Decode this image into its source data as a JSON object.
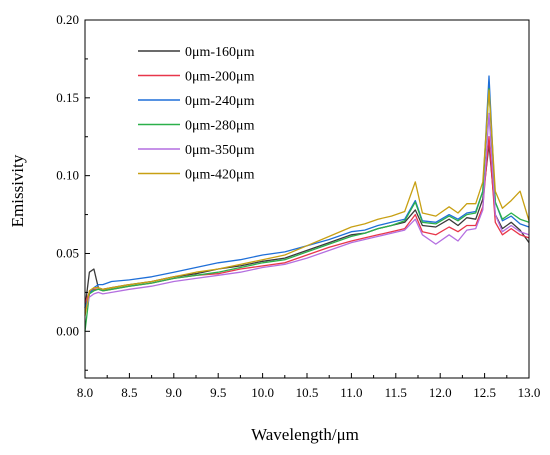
{
  "chart_data": {
    "type": "line",
    "xlabel": "Wavelength/μm",
    "ylabel": "Emissivity",
    "xlim": [
      8.0,
      13.0
    ],
    "ylim": [
      -0.03,
      0.2
    ],
    "xticks": [
      8.0,
      8.5,
      9.0,
      9.5,
      10.0,
      10.5,
      11.0,
      11.5,
      12.0,
      12.5,
      13.0
    ],
    "xtick_labels": [
      "8.0",
      "8.5",
      "9.0",
      "9.5",
      "10.0",
      "10.5",
      "11.0",
      "11.5",
      "12.0",
      "12.5",
      "13.0"
    ],
    "yticks": [
      0.0,
      0.05,
      0.1,
      0.15,
      0.2
    ],
    "ytick_labels": [
      "0.00",
      "0.05",
      "0.10",
      "0.15",
      "0.20"
    ],
    "grid": false,
    "legend": "top-left",
    "x": [
      8.0,
      8.05,
      8.1,
      8.15,
      8.2,
      8.3,
      8.5,
      8.75,
      9.0,
      9.25,
      9.5,
      9.75,
      10.0,
      10.25,
      10.5,
      10.75,
      11.0,
      11.15,
      11.3,
      11.45,
      11.6,
      11.72,
      11.8,
      11.95,
      12.1,
      12.2,
      12.3,
      12.4,
      12.48,
      12.55,
      12.62,
      12.7,
      12.8,
      12.9,
      13.0
    ],
    "series": [
      {
        "name": "0μm-160μm",
        "color": "#3a3a3a",
        "values": [
          0.015,
          0.038,
          0.04,
          0.028,
          0.027,
          0.028,
          0.03,
          0.032,
          0.035,
          0.037,
          0.04,
          0.042,
          0.045,
          0.047,
          0.052,
          0.057,
          0.062,
          0.063,
          0.066,
          0.068,
          0.07,
          0.078,
          0.068,
          0.067,
          0.072,
          0.068,
          0.073,
          0.072,
          0.085,
          0.12,
          0.075,
          0.066,
          0.07,
          0.065,
          0.057
        ]
      },
      {
        "name": "0μm-200μm",
        "color": "#e8364a",
        "values": [
          0.018,
          0.025,
          0.027,
          0.027,
          0.026,
          0.027,
          0.029,
          0.031,
          0.034,
          0.036,
          0.037,
          0.04,
          0.042,
          0.044,
          0.049,
          0.054,
          0.058,
          0.06,
          0.062,
          0.064,
          0.066,
          0.075,
          0.064,
          0.062,
          0.067,
          0.064,
          0.068,
          0.068,
          0.08,
          0.125,
          0.07,
          0.062,
          0.066,
          0.062,
          0.06
        ]
      },
      {
        "name": "0μm-240μm",
        "color": "#1f6fd8",
        "values": [
          0.015,
          0.024,
          0.028,
          0.03,
          0.03,
          0.032,
          0.033,
          0.035,
          0.038,
          0.041,
          0.044,
          0.046,
          0.049,
          0.051,
          0.055,
          0.059,
          0.064,
          0.065,
          0.068,
          0.07,
          0.072,
          0.084,
          0.071,
          0.07,
          0.075,
          0.072,
          0.076,
          0.077,
          0.09,
          0.164,
          0.083,
          0.071,
          0.074,
          0.069,
          0.067
        ]
      },
      {
        "name": "0μm-280μm",
        "color": "#2bb04a",
        "values": [
          0.0,
          0.024,
          0.026,
          0.027,
          0.026,
          0.027,
          0.029,
          0.031,
          0.034,
          0.036,
          0.038,
          0.041,
          0.044,
          0.046,
          0.051,
          0.056,
          0.061,
          0.063,
          0.066,
          0.068,
          0.071,
          0.083,
          0.07,
          0.069,
          0.074,
          0.071,
          0.075,
          0.076,
          0.09,
          0.156,
          0.083,
          0.072,
          0.076,
          0.072,
          0.07
        ]
      },
      {
        "name": "0μm-350μm",
        "color": "#b46fe0",
        "values": [
          0.012,
          0.022,
          0.024,
          0.025,
          0.024,
          0.025,
          0.027,
          0.029,
          0.032,
          0.034,
          0.036,
          0.038,
          0.041,
          0.043,
          0.047,
          0.052,
          0.057,
          0.059,
          0.061,
          0.063,
          0.065,
          0.072,
          0.062,
          0.056,
          0.062,
          0.058,
          0.065,
          0.066,
          0.078,
          0.14,
          0.075,
          0.064,
          0.068,
          0.064,
          0.062
        ]
      },
      {
        "name": "0μm-420μm",
        "color": "#c8a013",
        "values": [
          0.01,
          0.026,
          0.028,
          0.028,
          0.027,
          0.028,
          0.03,
          0.032,
          0.035,
          0.038,
          0.04,
          0.043,
          0.046,
          0.049,
          0.055,
          0.061,
          0.067,
          0.069,
          0.072,
          0.074,
          0.077,
          0.096,
          0.076,
          0.074,
          0.08,
          0.076,
          0.082,
          0.082,
          0.096,
          0.155,
          0.09,
          0.079,
          0.084,
          0.09,
          0.071
        ]
      }
    ]
  }
}
